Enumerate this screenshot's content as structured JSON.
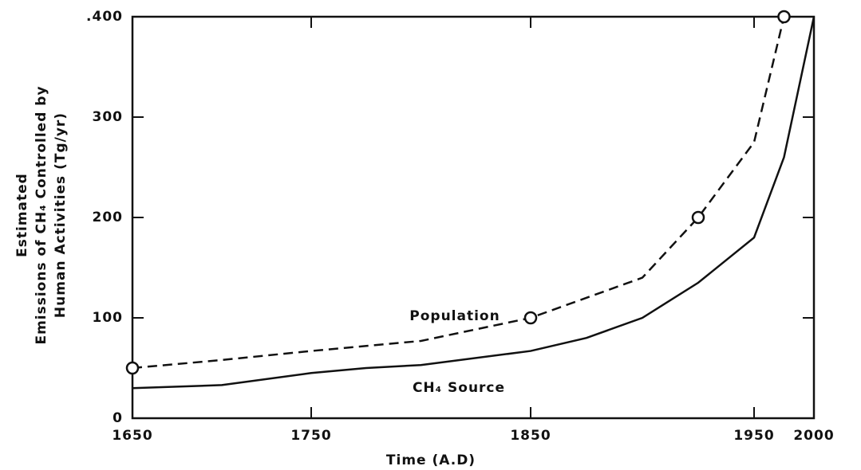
{
  "chart_data": {
    "type": "line",
    "y_label": [
      "Estimated",
      "Emissions of CH₄ Controlled by",
      "Human Activities  (Tg/yr)"
    ],
    "x_label": "Time   (A.D)",
    "xlim": [
      1650,
      2000
    ],
    "xticks": [
      1650,
      1750,
      1850,
      1950,
      2000
    ],
    "ylim": [
      0,
      400
    ],
    "yticks": [
      0,
      100,
      200,
      300,
      {
        "value": 400,
        "label": ".400"
      }
    ],
    "series": [
      {
        "name": "Population",
        "color": "#111111",
        "dashed": true,
        "x": [
          1650,
          1700,
          1750,
          1800,
          1850,
          1900,
          1925,
          1950,
          1975
        ],
        "values": [
          50,
          58,
          67,
          77,
          100,
          140,
          200,
          275,
          400
        ],
        "points": {
          "x": [
            1650,
            1850,
            1925,
            1975
          ],
          "values": [
            50,
            100,
            200,
            400
          ]
        }
      },
      {
        "name": "CH₄ Source",
        "color": "#111111",
        "dashed": false,
        "x": [
          1650,
          1700,
          1750,
          1775,
          1800,
          1850,
          1875,
          1900,
          1925,
          1950,
          1975,
          2000
        ],
        "values": [
          30,
          33,
          45,
          50,
          53,
          67,
          80,
          100,
          135,
          180,
          260,
          400
        ]
      }
    ]
  }
}
